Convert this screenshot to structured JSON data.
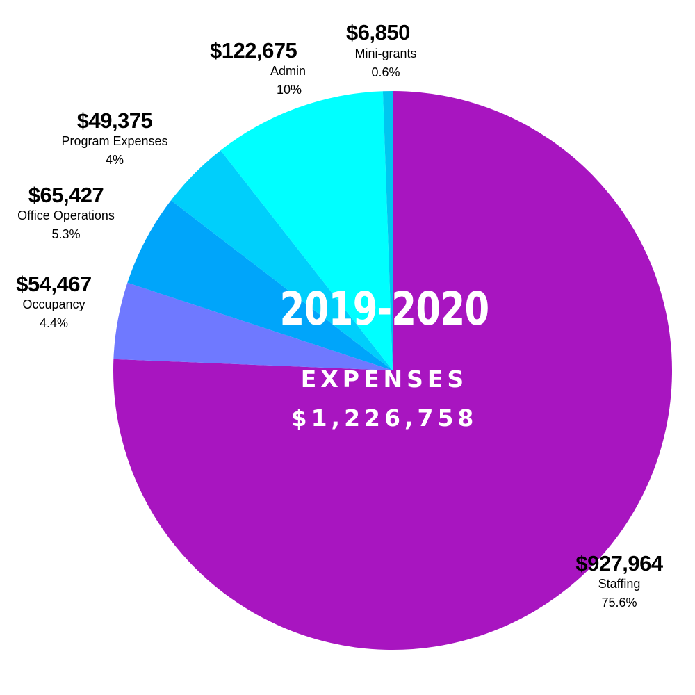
{
  "chart_data": {
    "type": "pie",
    "title": "2019-2020",
    "subtitle": "EXPENSES",
    "total": "$1,226,758",
    "slices": [
      {
        "name": "Staffing",
        "amount": "$927,964",
        "value": 927964,
        "percent": "75.6%",
        "color": "#a815c0"
      },
      {
        "name": "Occupancy",
        "amount": "$54,467",
        "value": 54467,
        "percent": "4.4%",
        "color": "#6f79ff"
      },
      {
        "name": "Office Operations",
        "amount": "$65,427",
        "value": 65427,
        "percent": "5.3%",
        "color": "#00a5fa"
      },
      {
        "name": "Program Expenses",
        "amount": "$49,375",
        "value": 49375,
        "percent": "4%",
        "color": "#00cffb"
      },
      {
        "name": "Admin",
        "amount": "$122,675",
        "value": 122675,
        "percent": "10%",
        "color": "#00ffff"
      },
      {
        "name": "Mini-grants",
        "amount": "$6,850",
        "value": 6850,
        "percent": "0.6%",
        "color": "#00c6ef"
      }
    ]
  }
}
